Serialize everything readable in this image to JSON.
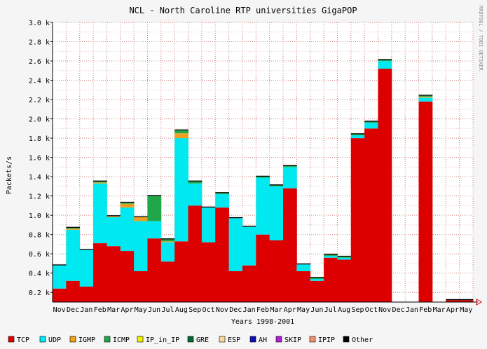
{
  "chart_data": {
    "type": "bar",
    "stacked": true,
    "title": "NCL - North Caroline RTP universities GigaPOP",
    "xlabel": "Years 1998-2001",
    "ylabel": "Packets/s",
    "side_credit": "RRDTOOL / TOBI OETIKER",
    "ylim": [
      0.1,
      3.0
    ],
    "y_ticks": [
      0.2,
      0.4,
      0.6,
      0.8,
      1.0,
      1.2,
      1.4,
      1.6,
      1.8,
      2.0,
      2.2,
      2.4,
      2.6,
      2.8,
      3.0
    ],
    "y_tick_labels": [
      "0.2 k",
      "0.4 k",
      "0.6 k",
      "0.8 k",
      "1.0 k",
      "1.2 k",
      "1.4 k",
      "1.6 k",
      "1.8 k",
      "2.0 k",
      "2.2 k",
      "2.4 k",
      "2.6 k",
      "2.8 k",
      "3.0 k"
    ],
    "categories": [
      "Nov",
      "Dec",
      "Jan",
      "Feb",
      "Mar",
      "Apr",
      "May",
      "Jun",
      "Jul",
      "Aug",
      "Sep",
      "Oct",
      "Nov",
      "Dec",
      "Jan",
      "Feb",
      "Mar",
      "Apr",
      "May",
      "Jun",
      "Jul",
      "Aug",
      "Sep",
      "Oct",
      "Nov",
      "Dec",
      "Jan",
      "Feb",
      "Mar",
      "Apr",
      "May"
    ],
    "grid": true,
    "legend_position": "bottom",
    "series": [
      {
        "name": "TCP",
        "color": "#dd0000",
        "values": [
          0.24,
          0.32,
          0.26,
          0.71,
          0.68,
          0.63,
          0.42,
          0.76,
          0.52,
          0.73,
          1.1,
          0.72,
          1.08,
          0.42,
          0.48,
          0.8,
          0.74,
          1.28,
          0.42,
          0.32,
          0.56,
          0.54,
          1.8,
          1.9,
          2.52,
          0,
          0,
          2.18,
          0,
          0.12,
          0.12
        ]
      },
      {
        "name": "UDP",
        "color": "#00e8f0",
        "values": [
          0.24,
          0.53,
          0.38,
          0.62,
          0.3,
          0.45,
          0.52,
          0.18,
          0.2,
          1.07,
          0.23,
          0.36,
          0.14,
          0.55,
          0.4,
          0.59,
          0.56,
          0.22,
          0.07,
          0.02,
          0.02,
          0.02,
          0.03,
          0.06,
          0.08,
          0,
          0,
          0.04,
          0,
          0,
          0
        ]
      },
      {
        "name": "IGMP",
        "color": "#f0a020",
        "values": [
          0,
          0.01,
          0,
          0.01,
          0.01,
          0.04,
          0.04,
          0,
          0.01,
          0.05,
          0,
          0,
          0,
          0,
          0,
          0,
          0,
          0,
          0,
          0,
          0,
          0,
          0,
          0,
          0,
          0,
          0,
          0.01,
          0,
          0,
          0
        ]
      },
      {
        "name": "ICMP",
        "color": "#20a848",
        "values": [
          0,
          0.01,
          0,
          0.01,
          0,
          0.01,
          0,
          0.26,
          0.02,
          0.03,
          0.02,
          0,
          0.01,
          0,
          0,
          0.01,
          0.01,
          0.01,
          0,
          0.01,
          0.01,
          0.01,
          0.01,
          0.01,
          0.01,
          0,
          0,
          0.01,
          0,
          0,
          0
        ]
      },
      {
        "name": "IP_in_IP",
        "color": "#f0f000",
        "values": [
          0,
          0,
          0,
          0,
          0,
          0,
          0,
          0,
          0,
          0,
          0,
          0,
          0,
          0,
          0,
          0,
          0,
          0,
          0,
          0,
          0,
          0,
          0,
          0,
          0,
          0,
          0,
          0,
          0,
          0,
          0
        ]
      },
      {
        "name": "GRE",
        "color": "#006830",
        "values": [
          0,
          0,
          0,
          0,
          0,
          0,
          0,
          0,
          0,
          0,
          0,
          0,
          0,
          0,
          0,
          0,
          0,
          0,
          0,
          0,
          0,
          0,
          0,
          0,
          0,
          0,
          0,
          0,
          0,
          0,
          0
        ]
      },
      {
        "name": "ESP",
        "color": "#f8d8a0",
        "values": [
          0,
          0,
          0,
          0,
          0,
          0,
          0,
          0,
          0,
          0,
          0,
          0,
          0,
          0,
          0,
          0,
          0,
          0,
          0,
          0,
          0,
          0,
          0,
          0,
          0,
          0,
          0,
          0,
          0,
          0,
          0
        ]
      },
      {
        "name": "AH",
        "color": "#1010b0",
        "values": [
          0,
          0,
          0,
          0,
          0,
          0,
          0,
          0,
          0,
          0,
          0,
          0,
          0,
          0,
          0,
          0,
          0,
          0,
          0,
          0,
          0,
          0,
          0,
          0,
          0,
          0,
          0,
          0,
          0,
          0,
          0
        ]
      },
      {
        "name": "SKIP",
        "color": "#b020d0",
        "values": [
          0,
          0,
          0,
          0,
          0,
          0,
          0,
          0,
          0,
          0,
          0,
          0,
          0,
          0,
          0,
          0,
          0,
          0,
          0,
          0,
          0,
          0,
          0,
          0,
          0,
          0,
          0,
          0,
          0,
          0,
          0
        ]
      },
      {
        "name": "IPIP",
        "color": "#f09070",
        "values": [
          0,
          0,
          0,
          0,
          0,
          0,
          0,
          0,
          0,
          0,
          0,
          0,
          0,
          0,
          0,
          0,
          0,
          0,
          0,
          0,
          0,
          0,
          0,
          0,
          0,
          0,
          0,
          0,
          0,
          0,
          0
        ]
      },
      {
        "name": "Other",
        "color": "#000000",
        "values": [
          0.01,
          0.01,
          0.01,
          0.01,
          0.01,
          0.01,
          0.01,
          0.01,
          0.01,
          0.01,
          0.01,
          0.01,
          0.01,
          0.01,
          0.01,
          0.01,
          0.01,
          0.01,
          0.01,
          0.01,
          0.01,
          0.01,
          0.01,
          0.01,
          0.01,
          0.01,
          0.01,
          0.01,
          0.01,
          0.01,
          0.01
        ]
      }
    ]
  }
}
